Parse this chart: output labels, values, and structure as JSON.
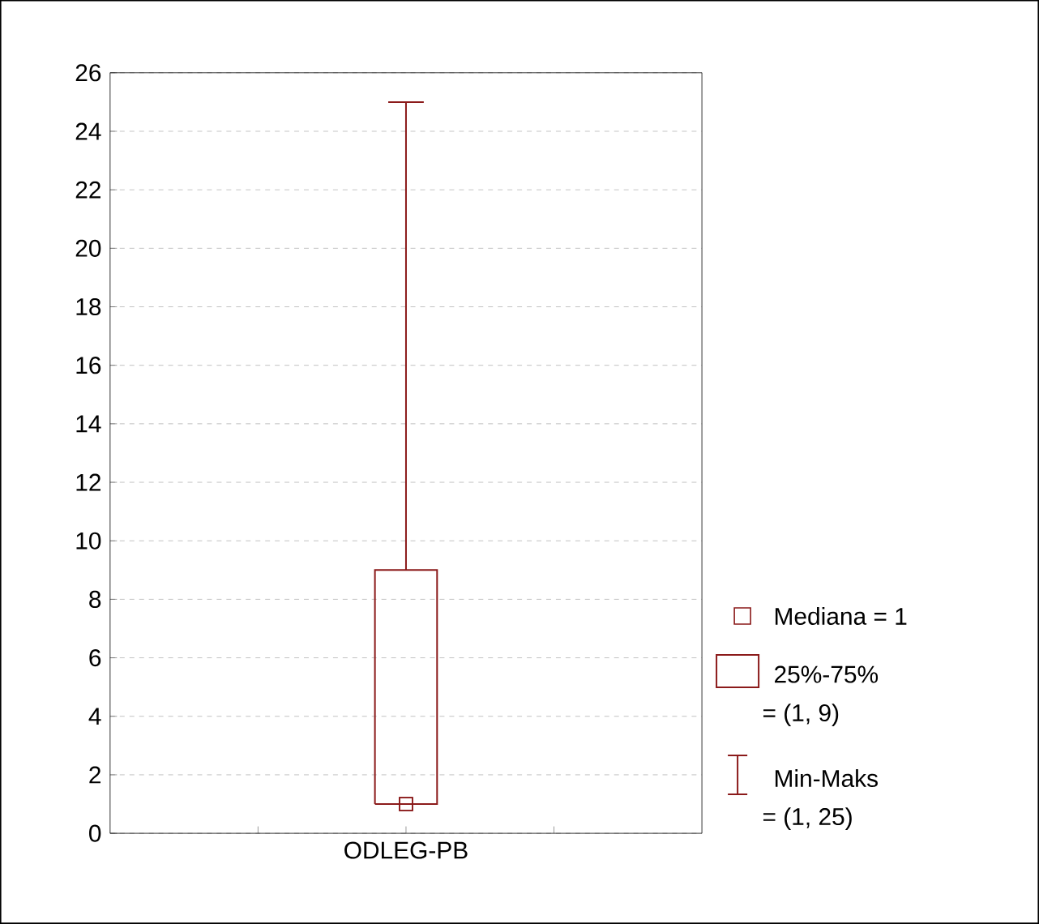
{
  "chart_data": {
    "type": "box",
    "categories": [
      "ODLEG-PB"
    ],
    "boxes": [
      {
        "low": 1,
        "q1": 1,
        "median": 1,
        "q3": 9,
        "high": 25
      }
    ],
    "color": "#8b1a1a",
    "marker": "square",
    "series": [
      {
        "type": "scatter",
        "x": [
          "ODLEG-PB"
        ],
        "values": [
          1
        ]
      }
    ],
    "ylim": [
      0,
      26
    ],
    "yticks": [
      0,
      2,
      4,
      6,
      8,
      10,
      12,
      14,
      16,
      18,
      20,
      22,
      24,
      26
    ],
    "grid": "y",
    "annotations": [
      "Mediana = 1",
      "25%-75%",
      "= (1, 9)",
      "Min-Maks",
      "= (1, 25)"
    ]
  }
}
